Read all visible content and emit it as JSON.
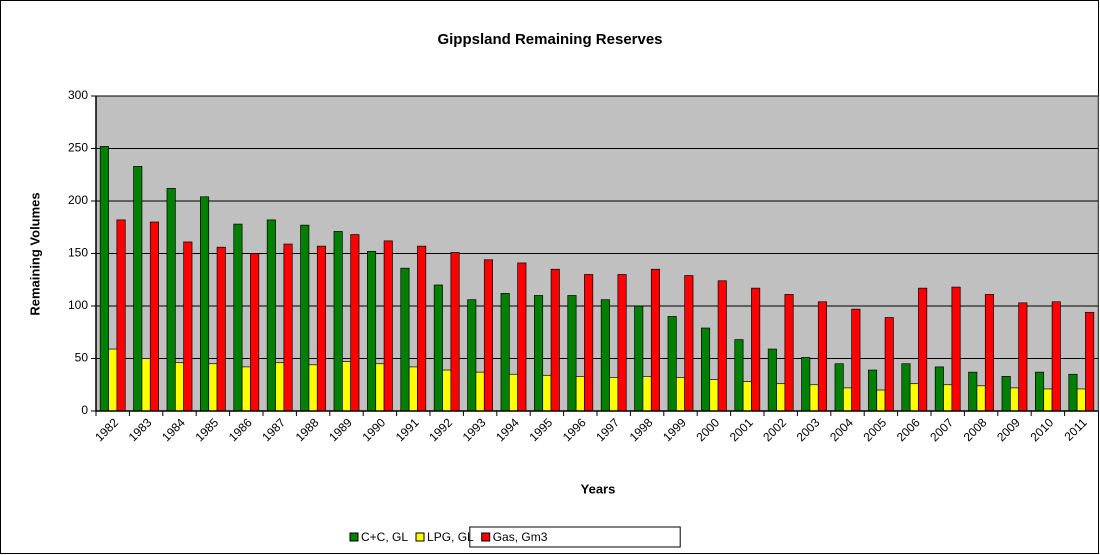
{
  "chart_data": {
    "type": "bar",
    "title": "Gippsland Remaining Reserves",
    "x_label": "Years",
    "y_label": "Remaining Volumes",
    "categories": [
      "1982",
      "1983",
      "1984",
      "1985",
      "1986",
      "1987",
      "1988",
      "1989",
      "1990",
      "1991",
      "1992",
      "1993",
      "1994",
      "1995",
      "1996",
      "1997",
      "1998",
      "1999",
      "2000",
      "2001",
      "2002",
      "2003",
      "2004",
      "2005",
      "2006",
      "2007",
      "2008",
      "2009",
      "2010",
      "2011"
    ],
    "series": [
      {
        "name": "C+C, GL",
        "color": "#008000",
        "values": [
          252,
          233,
          212,
          204,
          178,
          182,
          177,
          171,
          152,
          136,
          120,
          106,
          112,
          110,
          110,
          106,
          100,
          90,
          79,
          68,
          59,
          51,
          45,
          39,
          45,
          42,
          37,
          33,
          37,
          35
        ]
      },
      {
        "name": "LPG, GL",
        "color": "#ffff00",
        "values": [
          59,
          50,
          46,
          45,
          42,
          46,
          44,
          47,
          45,
          42,
          39,
          37,
          35,
          34,
          33,
          32,
          33,
          32,
          30,
          28,
          26,
          25,
          22,
          20,
          26,
          25,
          24,
          22,
          21,
          21
        ]
      },
      {
        "name": "Gas, Gm3",
        "color": "#ff0000",
        "values": [
          182,
          180,
          161,
          156,
          150,
          159,
          157,
          168,
          162,
          157,
          151,
          144,
          141,
          135,
          130,
          130,
          135,
          129,
          124,
          117,
          111,
          104,
          97,
          89,
          117,
          118,
          111,
          103,
          104,
          94
        ]
      }
    ],
    "ylim": [
      0,
      300
    ],
    "yticks": [
      0,
      50,
      100,
      150,
      200,
      250,
      300
    ],
    "grid": true,
    "plot_background": "#c0c0c0",
    "legend_position": "bottom"
  }
}
